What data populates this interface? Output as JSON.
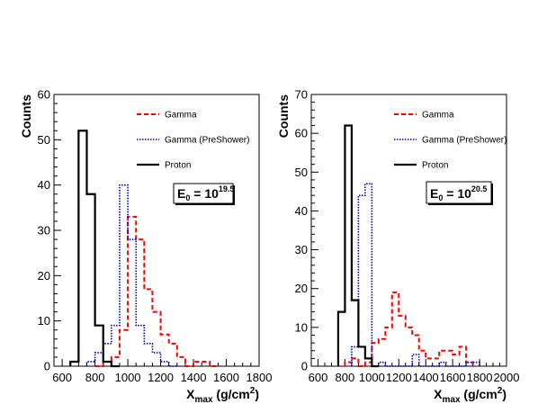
{
  "chart_data": [
    {
      "type": "histogram",
      "ylabel": "Counts",
      "xlabel_base": "X",
      "xlabel_sub": "max",
      "xlabel_unit": " (g/cm",
      "xlabel_unit_sup": "2",
      "xlabel_close": ")",
      "xlim": [
        550,
        1800
      ],
      "ylim": [
        0,
        60
      ],
      "xticks": [
        600,
        800,
        1000,
        1200,
        1400,
        1600,
        1800
      ],
      "yticks": [
        0,
        10,
        20,
        30,
        40,
        50,
        60
      ],
      "bin_width": 50,
      "energy_base": "E",
      "energy_sub": "0",
      "energy_eq": " = 10",
      "energy_sup": "19.5",
      "legend": [
        "Gamma",
        "Gamma (PreShower)",
        "Proton"
      ],
      "series": [
        {
          "name": "Gamma",
          "color": "#ff0000",
          "style": "dashed",
          "bins_start": 800,
          "values": [
            0,
            1,
            2,
            8,
            33,
            28,
            17,
            12,
            7,
            5,
            2,
            0,
            1,
            1,
            0
          ]
        },
        {
          "name": "Gamma (PreShower)",
          "color": "#0000cc",
          "style": "dotted",
          "bins_start": 750,
          "values": [
            1,
            3,
            5,
            9,
            40,
            28,
            9,
            5,
            3,
            1,
            0
          ]
        },
        {
          "name": "Proton",
          "color": "#000000",
          "style": "solid",
          "bins_start": 650,
          "values": [
            1,
            52,
            38,
            9,
            1,
            0
          ]
        }
      ]
    },
    {
      "type": "histogram",
      "ylabel": "Counts",
      "xlabel_base": "X",
      "xlabel_sub": "max",
      "xlabel_unit": " (g/cm",
      "xlabel_unit_sup": "2",
      "xlabel_close": ")",
      "xlim": [
        550,
        2000
      ],
      "ylim": [
        0,
        70
      ],
      "xticks": [
        600,
        800,
        1000,
        1200,
        1400,
        1600,
        1800,
        2000
      ],
      "xtick_labels": [
        "600",
        "800",
        "1000",
        "1200",
        "1400",
        "1600",
        "1800",
        "2000"
      ],
      "yticks": [
        0,
        10,
        20,
        30,
        40,
        50,
        60,
        70
      ],
      "bin_width": 50,
      "energy_base": "E",
      "energy_sub": "0",
      "energy_eq": " = 10",
      "energy_sup": "20.5",
      "legend": [
        "Gamma",
        "Gamma (PreShower)",
        "Proton"
      ],
      "series": [
        {
          "name": "Gamma",
          "color": "#ff0000",
          "style": "dashed",
          "bins_start": 800,
          "values": [
            1,
            2,
            0,
            1,
            6,
            7,
            10,
            19,
            13,
            10,
            8,
            4,
            2,
            2,
            4,
            4,
            3,
            5,
            1
          ]
        },
        {
          "name": "Gamma (PreShower)",
          "color": "#0000cc",
          "style": "dotted",
          "bins_start": 850,
          "values": [
            5,
            44,
            47,
            0,
            1,
            0,
            0,
            0,
            0,
            3,
            0,
            0,
            0,
            1,
            0,
            0,
            0,
            1,
            1
          ]
        },
        {
          "name": "Proton",
          "color": "#000000",
          "style": "solid",
          "bins_start": 750,
          "values": [
            14,
            62,
            17,
            5,
            2,
            0
          ]
        }
      ]
    }
  ]
}
